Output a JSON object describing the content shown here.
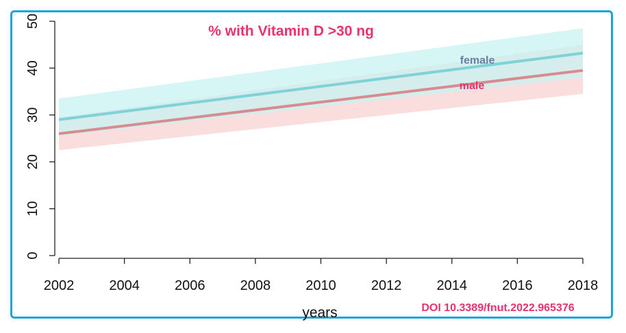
{
  "chart_data": {
    "type": "line",
    "title": "% with Vitamin D >30 ng",
    "xlabel": "years",
    "ylabel": "",
    "xlim": [
      2002,
      2018
    ],
    "ylim": [
      0,
      50
    ],
    "xticks": [
      2002,
      2004,
      2006,
      2008,
      2010,
      2012,
      2014,
      2016,
      2018
    ],
    "yticks": [
      0,
      10,
      20,
      30,
      40,
      50
    ],
    "grid": false,
    "series": [
      {
        "name": "female",
        "color": "#7fd3d6",
        "band_color": "#c8f1f1",
        "x": [
          2002,
          2018
        ],
        "values": [
          29,
          43.2
        ],
        "lower": [
          25.5,
          38
        ],
        "upper": [
          33.5,
          48.5
        ]
      },
      {
        "name": "male",
        "color": "#d98c8f",
        "band_color": "#f8d3d3",
        "x": [
          2002,
          2018
        ],
        "values": [
          26,
          39.5
        ],
        "lower": [
          22.5,
          34.5
        ],
        "upper": [
          29.5,
          45
        ]
      }
    ],
    "title_color": "#e8336d",
    "female_label_color": "#6b7fa8",
    "male_label_color": "#e8336d"
  },
  "doi": "DOI 10.3389/fnut.2022.965376",
  "doi_color": "#e8336d",
  "frame_color": "#1aa3dc"
}
